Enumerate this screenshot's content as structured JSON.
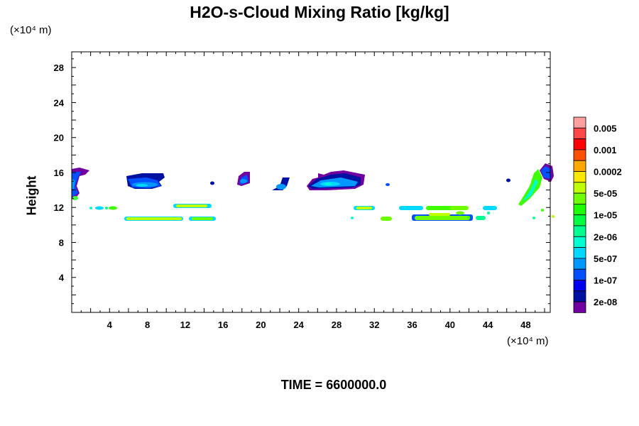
{
  "chart_data": {
    "type": "heatmap",
    "title": "H2O-s-Cloud Mixing Ratio [kg/kg]",
    "xlabel": "",
    "ylabel": "Height",
    "x_unit": "(×10⁴ m)",
    "y_unit": "(×10⁴ m)",
    "xlim": [
      0,
      50.6
    ],
    "ylim": [
      0,
      29.8
    ],
    "xticks": [
      4,
      8,
      12,
      16,
      20,
      24,
      28,
      32,
      36,
      40,
      44,
      48
    ],
    "yticks": [
      4,
      8,
      12,
      16,
      20,
      24,
      28
    ],
    "colorbar": {
      "labels": [
        "0.005",
        "0.001",
        "0.0002",
        "5e-05",
        "1e-05",
        "2e-06",
        "5e-07",
        "1e-07",
        "2e-08"
      ],
      "colors": [
        "#ffa0a0",
        "#ff4848",
        "#ff0000",
        "#ff5000",
        "#ffa800",
        "#ffe800",
        "#c0ff00",
        "#70ff00",
        "#20ff00",
        "#00ff40",
        "#00ff90",
        "#00ffd0",
        "#00d8ff",
        "#0098ff",
        "#0050ff",
        "#0000f0",
        "#0010a0",
        "#7000a0"
      ]
    },
    "footer": "TIME = 6600000.0"
  }
}
